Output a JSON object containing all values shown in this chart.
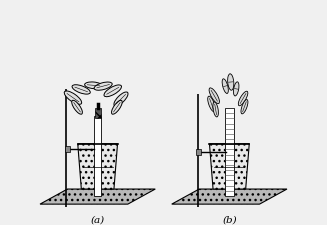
{
  "label_a": "(a)",
  "label_b": "(b)",
  "bg_color": "#f0f0f0",
  "figure_width": 3.27,
  "figure_height": 2.26,
  "dpi": 100,
  "xlim": [
    0,
    10
  ],
  "ylim": [
    0,
    8
  ]
}
